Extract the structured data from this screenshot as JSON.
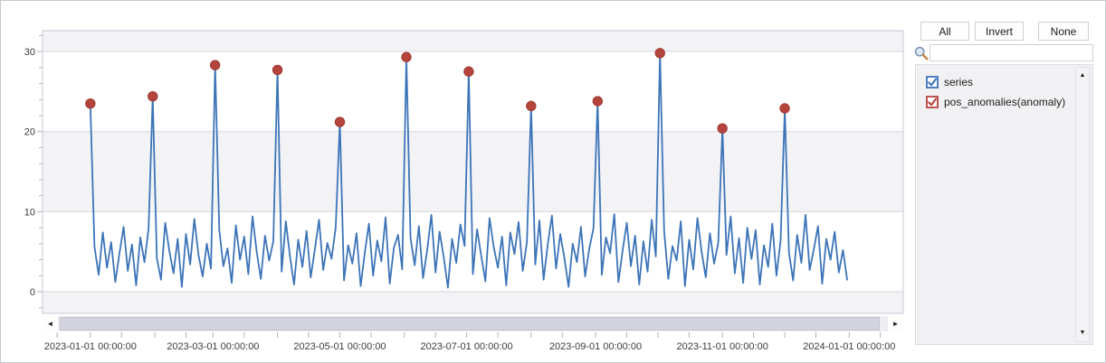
{
  "chart_data": {
    "type": "line",
    "title": "",
    "xlabel": "",
    "ylabel": "",
    "x_unit": "days since 2023-01-01",
    "x_range_days": [
      -23,
      391
    ],
    "y_range": [
      -2.7,
      32.6
    ],
    "y_ticks": [
      0,
      10,
      20,
      30
    ],
    "y_minor_tick_step": 2,
    "grid": true,
    "alternating_bands": true,
    "x_tick_labels": [
      {
        "day": 0,
        "text": "2023-01-01 00:00:00"
      },
      {
        "day": 59,
        "text": "2023-03-01 00:00:00"
      },
      {
        "day": 120,
        "text": "2023-05-01 00:00:00"
      },
      {
        "day": 181,
        "text": "2023-07-01 00:00:00"
      },
      {
        "day": 243,
        "text": "2023-09-01 00:00:00"
      },
      {
        "day": 304,
        "text": "2023-11-01 00:00:00"
      },
      {
        "day": 365,
        "text": "2024-01-01 00:00:00"
      }
    ],
    "x_minor_tick_days": [
      -16,
      0,
      15,
      31,
      46,
      59,
      74,
      90,
      105,
      120,
      135,
      151,
      166,
      181,
      196,
      212,
      227,
      243,
      258,
      273,
      288,
      304,
      319,
      334,
      349,
      365,
      380
    ],
    "series": [
      {
        "name": "series",
        "type": "line",
        "color": "#3c74b8",
        "x_start_day": 0,
        "x_step_days": 2,
        "values": [
          23.5,
          5.6,
          2.1,
          7.4,
          3.0,
          6.2,
          1.2,
          4.8,
          8.1,
          2.6,
          5.9,
          0.8,
          6.8,
          3.7,
          7.9,
          24.4,
          4.2,
          1.5,
          8.6,
          5.1,
          2.3,
          6.6,
          0.6,
          7.2,
          3.4,
          9.1,
          4.6,
          1.9,
          6.0,
          2.9,
          28.3,
          7.7,
          3.2,
          5.4,
          1.1,
          8.3,
          4.0,
          6.9,
          2.2,
          9.4,
          5.0,
          1.6,
          7.0,
          3.9,
          6.3,
          27.7,
          2.5,
          8.8,
          4.4,
          0.9,
          6.5,
          3.1,
          7.6,
          1.8,
          5.3,
          9.0,
          2.7,
          6.1,
          4.1,
          8.0,
          21.2,
          1.4,
          5.8,
          3.5,
          7.3,
          0.7,
          4.9,
          8.5,
          2.0,
          6.4,
          3.8,
          9.3,
          1.0,
          5.5,
          7.1,
          2.8,
          29.3,
          6.7,
          3.3,
          8.2,
          1.7,
          5.2,
          9.6,
          2.4,
          7.5,
          4.3,
          0.5,
          6.6,
          3.6,
          8.4,
          5.7,
          27.5,
          2.2,
          7.8,
          4.5,
          1.3,
          9.2,
          5.6,
          3.0,
          6.9,
          0.8,
          7.4,
          4.7,
          8.7,
          2.6,
          6.2,
          23.2,
          3.4,
          8.9,
          1.5,
          5.9,
          9.5,
          2.9,
          7.2,
          4.2,
          0.6,
          6.0,
          3.7,
          8.1,
          1.9,
          5.4,
          7.9,
          23.8,
          2.1,
          6.8,
          4.8,
          9.7,
          1.2,
          5.1,
          8.6,
          3.2,
          7.0,
          0.9,
          6.3,
          2.5,
          9.0,
          4.4,
          29.8,
          7.6,
          1.6,
          5.7,
          3.9,
          8.8,
          0.7,
          6.5,
          2.8,
          9.2,
          5.0,
          1.8,
          7.3,
          3.5,
          6.1,
          20.4,
          4.6,
          9.4,
          2.3,
          6.7,
          1.1,
          8.0,
          4.1,
          7.7,
          0.9,
          5.8,
          3.1,
          8.5,
          2.0,
          6.4,
          22.9,
          4.9,
          1.4,
          7.1,
          3.6,
          9.6,
          2.7,
          5.3,
          8.2,
          1.0,
          6.6,
          4.0,
          7.5,
          2.4,
          5.2,
          1.5
        ]
      },
      {
        "name": "pos_anomalies(anomaly)",
        "type": "scatter",
        "color": "#b5443c",
        "marker": "circle",
        "points": [
          {
            "day": 0,
            "value": 23.5
          },
          {
            "day": 30,
            "value": 24.4
          },
          {
            "day": 60,
            "value": 28.3
          },
          {
            "day": 90,
            "value": 27.7
          },
          {
            "day": 120,
            "value": 21.2
          },
          {
            "day": 152,
            "value": 29.3
          },
          {
            "day": 182,
            "value": 27.5
          },
          {
            "day": 212,
            "value": 23.2
          },
          {
            "day": 244,
            "value": 23.8
          },
          {
            "day": 274,
            "value": 29.8
          },
          {
            "day": 304,
            "value": 20.4
          },
          {
            "day": 334,
            "value": 22.9
          }
        ]
      }
    ],
    "legend_position": "right-panel"
  },
  "scrollbar_h": {
    "left_arrow": "◄",
    "right_arrow": "►"
  },
  "panel": {
    "buttons": [
      {
        "label": "All"
      },
      {
        "label": "Invert"
      },
      {
        "label": "None"
      }
    ],
    "search": {
      "value": "",
      "icon": "magnifier"
    },
    "legend_items": [
      {
        "label": "series",
        "color": "#3c74b8",
        "checked": true
      },
      {
        "label": "pos_anomalies(anomaly)",
        "color": "#b5443c",
        "checked": true
      }
    ],
    "scrollbar_v": {
      "up_arrow": "▲",
      "down_arrow": "▼"
    }
  },
  "colors": {
    "band": "#f3f3f6",
    "grid": "#d7d7df",
    "plot_border": "#c6c9d3",
    "tick": "#aeb1bd",
    "axis_text": "#3a3a3a",
    "line": "#3c74b8",
    "anomaly": "#b5443c"
  }
}
